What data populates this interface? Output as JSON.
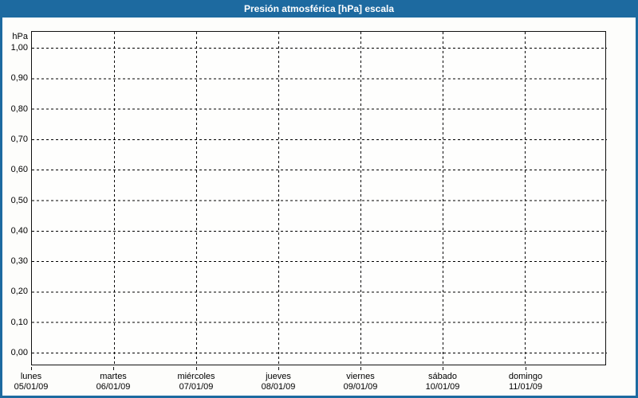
{
  "window": {
    "title": "Presión atmosférica [hPa] escala"
  },
  "colors": {
    "accent": "#1D6AA0",
    "grid": "#000000",
    "plot_background": "#FEFEFD",
    "title_text": "#FFFFFF"
  },
  "chart_data": {
    "type": "line",
    "title": "Presión atmosférica [hPa] escala",
    "ylabel": "hPa",
    "ylim": [
      0.0,
      1.0
    ],
    "y_tick_step": 0.1,
    "y_tick_labels": [
      "1,00",
      "0,90",
      "0,80",
      "0,70",
      "0,60",
      "0,50",
      "0,40",
      "0,30",
      "0,20",
      "0,10",
      "0,00"
    ],
    "categories": [
      {
        "day": "lunes",
        "date": "05/01/09"
      },
      {
        "day": "martes",
        "date": "06/01/09"
      },
      {
        "day": "miércoles",
        "date": "07/01/09"
      },
      {
        "day": "jueves",
        "date": "08/01/09"
      },
      {
        "day": "viernes",
        "date": "09/01/09"
      },
      {
        "day": "sábado",
        "date": "10/01/09"
      },
      {
        "day": "domingo",
        "date": "11/01/09"
      }
    ],
    "series": [],
    "grid": {
      "horizontal": "dashed",
      "vertical": "dashed"
    },
    "legend": "none"
  }
}
